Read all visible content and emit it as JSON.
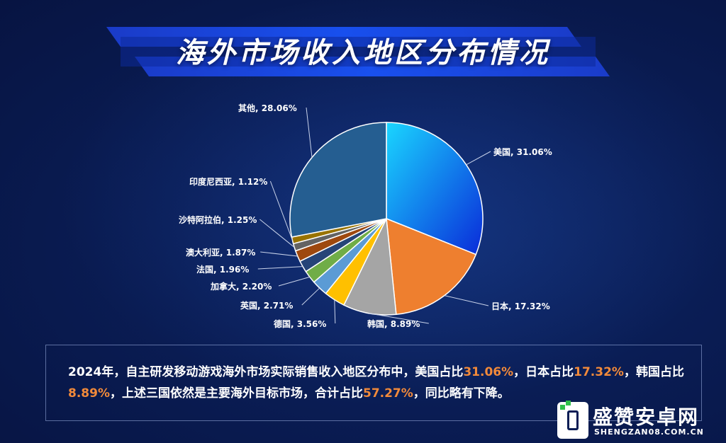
{
  "title": "海外市场收入地区分布情况",
  "chart_data": {
    "type": "pie",
    "title": "海外市场收入地区分布情况",
    "slices": [
      {
        "label": "美国, 31.06%",
        "value": 31.06,
        "color": "#1f6bf0"
      },
      {
        "label": "日本, 17.32%",
        "value": 17.32,
        "color": "#ee7f2f"
      },
      {
        "label": "韩国, 8.89%",
        "value": 8.89,
        "color": "#a5a5a5"
      },
      {
        "label": "德国, 3.56%",
        "value": 3.56,
        "color": "#ffc000"
      },
      {
        "label": "英国, 2.71%",
        "value": 2.71,
        "color": "#5b9bd5"
      },
      {
        "label": "加拿大, 2.20%",
        "value": 2.2,
        "color": "#70ad47"
      },
      {
        "label": "法国, 1.96%",
        "value": 1.96,
        "color": "#264478"
      },
      {
        "label": "澳大利亚, 1.87%",
        "value": 1.87,
        "color": "#9e480e"
      },
      {
        "label": "沙特阿拉伯, 1.25%",
        "value": 1.25,
        "color": "#636363"
      },
      {
        "label": "印度尼西亚, 1.12%",
        "value": 1.12,
        "color": "#997300"
      },
      {
        "label": "其他, 28.06%",
        "value": 28.06,
        "color": "#255e91"
      }
    ]
  },
  "note": {
    "p1": "2024年，自主研发移动游戏海外市场实际销售收入地区分布中，美国占比",
    "h1": "31.06%",
    "p2": "，日本占比",
    "h2": "17.32%",
    "p3": "，韩国占比",
    "h3": "8.89%",
    "p4": "，上述三国依然是主要海外目标市场，合计占比",
    "h4": "57.27%",
    "p5": "，同比略有下降。"
  },
  "logo": {
    "name": "盛赞安卓网",
    "url": "SHENGZAN08.COM.CN"
  }
}
